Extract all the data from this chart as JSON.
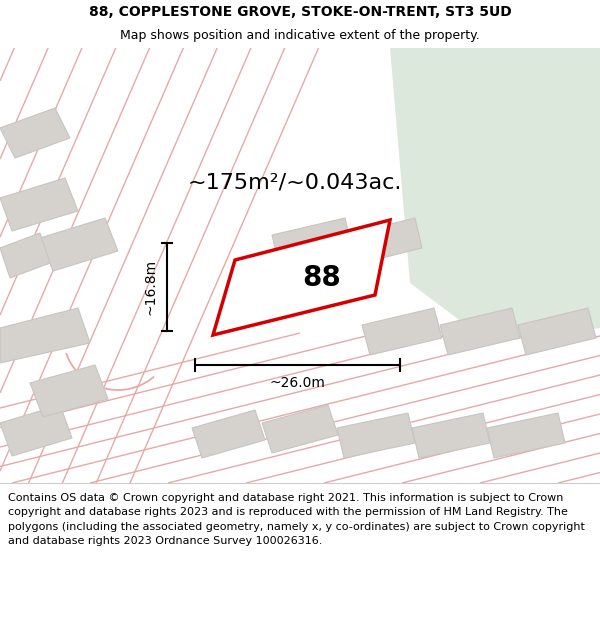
{
  "title_line1": "88, COPPLESTONE GROVE, STOKE-ON-TRENT, ST3 5UD",
  "title_line2": "Map shows position and indicative extent of the property.",
  "area_text": "~175m²/~0.043ac.",
  "label_88": "88",
  "width_label": "~26.0m",
  "height_label": "~16.8m",
  "footer_text": "Contains OS data © Crown copyright and database right 2021. This information is subject to Crown copyright and database rights 2023 and is reproduced with the permission of HM Land Registry. The polygons (including the associated geometry, namely x, y co-ordinates) are subject to Crown copyright and database rights 2023 Ordnance Survey 100026316.",
  "bg_white": "#ffffff",
  "map_bg": "#edeae6",
  "green_color": "#dde8dd",
  "highlight_red": "#d40000",
  "cad_line_color": "#e8a8a8",
  "building_fill": "#d5d2ce",
  "building_edge": "#c8c5c1",
  "title_fontsize": 10,
  "subtitle_fontsize": 9,
  "area_fontsize": 16,
  "label_fontsize": 20,
  "dim_fontsize": 10,
  "footer_fontsize": 8.0
}
